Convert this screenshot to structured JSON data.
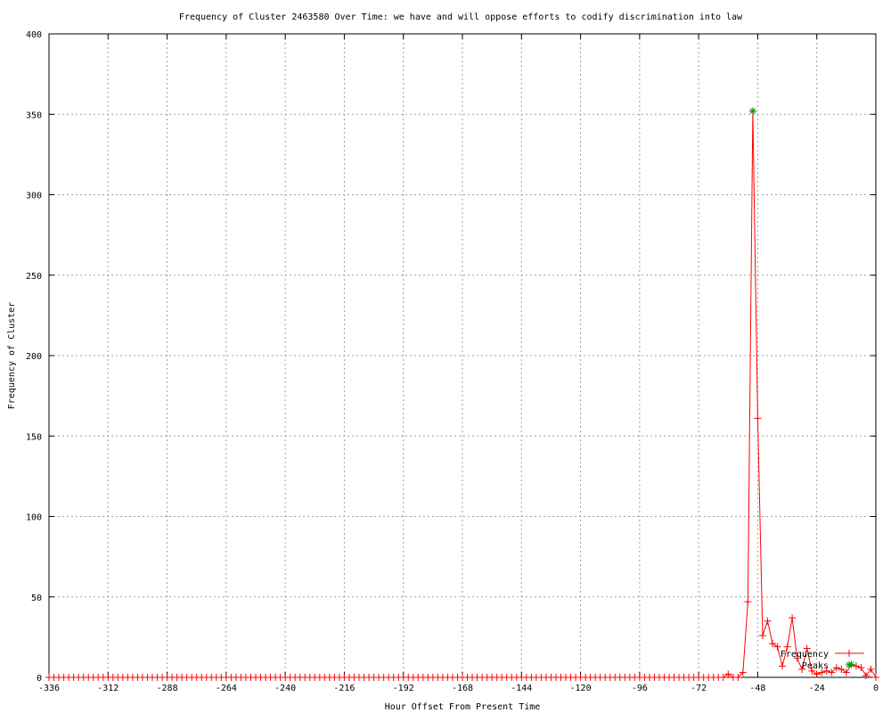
{
  "chart_data": {
    "type": "line",
    "title": "Frequency of Cluster 2463580 Over Time: we have and will oppose efforts to codify discrimination into law",
    "xlabel": "Hour Offset From Present Time",
    "ylabel": "Frequency of Cluster",
    "xlim": [
      -336,
      0
    ],
    "ylim": [
      0,
      400
    ],
    "xticks": [
      -336,
      -312,
      -288,
      -264,
      -240,
      -216,
      -192,
      -168,
      -144,
      -120,
      -96,
      -72,
      -48,
      -24,
      0
    ],
    "yticks": [
      0,
      50,
      100,
      150,
      200,
      250,
      300,
      350,
      400
    ],
    "grid": true,
    "legend_position": "bottom-right",
    "series": [
      {
        "name": "Frequency",
        "color": "#ff0000",
        "marker": "plus",
        "x_start": -336,
        "x_step": 2,
        "sparse_values": {
          "-60": 2,
          "-54": 3,
          "-52": 47,
          "-50": 352,
          "-48": 161,
          "-46": 26,
          "-44": 35,
          "-42": 21,
          "-40": 19,
          "-38": 7,
          "-36": 19,
          "-34": 37,
          "-32": 12,
          "-30": 5,
          "-28": 18,
          "-26": 4,
          "-24": 2,
          "-22": 3,
          "-20": 4,
          "-18": 3,
          "-16": 6,
          "-14": 5,
          "-12": 3,
          "-10": 8,
          "-8": 7,
          "-6": 6,
          "-4": 1,
          "-2": 5,
          "0": 0
        },
        "default_value": 0
      },
      {
        "name": "Peaks",
        "color": "#00a000",
        "marker": "asterisk",
        "points": [
          {
            "x": -50,
            "y": 352
          },
          {
            "x": -10,
            "y": 8
          }
        ]
      }
    ]
  }
}
